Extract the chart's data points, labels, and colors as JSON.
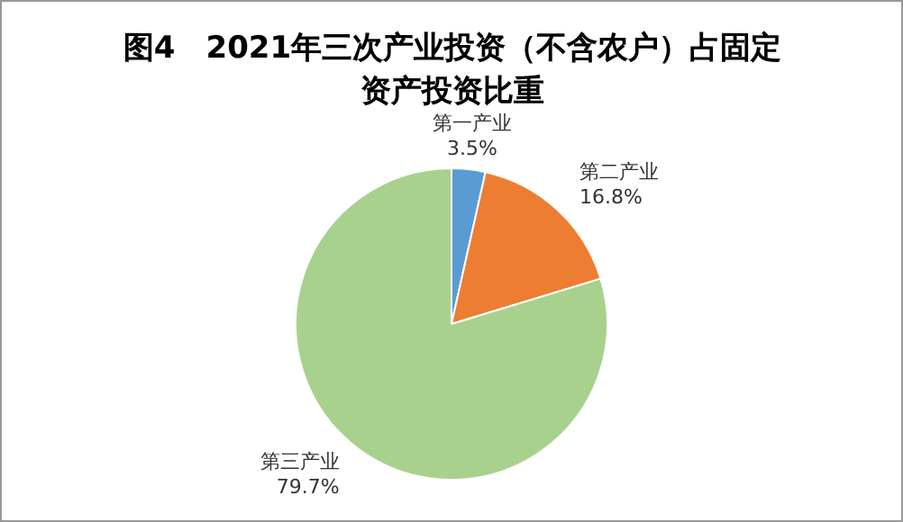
{
  "chart_data": {
    "type": "pie",
    "title": "图4　2021年三次产业投资（不含农户）占固定资产投资比重",
    "categories": [
      "第一产业",
      "第二产业",
      "第三产业"
    ],
    "values": [
      3.5,
      16.8,
      79.7
    ],
    "colors": [
      "#5b9bd5",
      "#ed7d31",
      "#a9d18e"
    ],
    "value_labels": [
      "3.5%",
      "16.8%",
      "79.7%"
    ],
    "legend": false
  }
}
